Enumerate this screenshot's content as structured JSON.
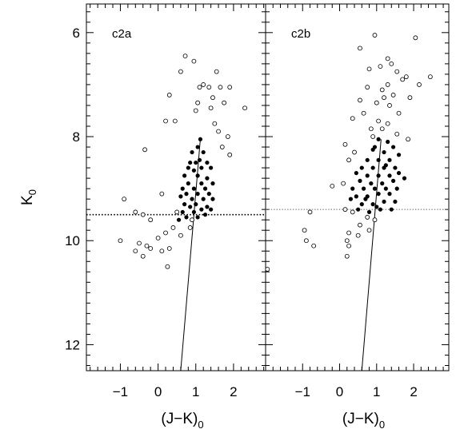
{
  "chart_data": [
    {
      "type": "scatter",
      "panel_label": "c2a",
      "xlabel": "(J−K)",
      "xlabel_sub": "0",
      "ylabel": "K",
      "ylabel_sub": "0",
      "xlim": [
        -1.9,
        2.85
      ],
      "ylim": [
        12.5,
        5.45
      ],
      "y_inverted": true,
      "x_ticks": [
        -1,
        0,
        1,
        2
      ],
      "y_ticks": [
        6,
        8,
        10,
        12
      ],
      "grid": false,
      "horizontal_line": {
        "y": 9.5,
        "style": "dotted"
      },
      "fit_line": [
        [
          0.6,
          12.5
        ],
        [
          1.12,
          8.05
        ]
      ],
      "series": [
        {
          "marker": "filled",
          "points": [
            [
              1.12,
              8.05
            ],
            [
              1.05,
              8.2
            ],
            [
              0.9,
              8.3
            ],
            [
              1.2,
              8.3
            ],
            [
              0.85,
              8.5
            ],
            [
              1.0,
              8.5
            ],
            [
              1.3,
              8.5
            ],
            [
              0.95,
              8.65
            ],
            [
              1.15,
              8.6
            ],
            [
              1.4,
              8.6
            ],
            [
              0.7,
              8.75
            ],
            [
              1.05,
              8.75
            ],
            [
              1.3,
              8.8
            ],
            [
              0.8,
              8.9
            ],
            [
              1.15,
              8.9
            ],
            [
              1.45,
              8.9
            ],
            [
              0.65,
              9.0
            ],
            [
              0.95,
              9.0
            ],
            [
              1.25,
              9.0
            ],
            [
              0.75,
              9.1
            ],
            [
              1.05,
              9.1
            ],
            [
              1.35,
              9.1
            ],
            [
              0.6,
              9.15
            ],
            [
              0.9,
              9.2
            ],
            [
              1.2,
              9.2
            ],
            [
              1.45,
              9.2
            ],
            [
              0.7,
              9.3
            ],
            [
              1.0,
              9.3
            ],
            [
              0.85,
              9.35
            ],
            [
              1.15,
              9.4
            ],
            [
              1.4,
              9.4
            ],
            [
              0.65,
              9.45
            ],
            [
              0.95,
              9.45
            ],
            [
              1.25,
              9.5
            ],
            [
              0.75,
              9.55
            ],
            [
              1.05,
              9.55
            ],
            [
              0.55,
              9.6
            ],
            [
              1.3,
              9.35
            ],
            [
              0.8,
              8.6
            ],
            [
              1.1,
              8.45
            ]
          ]
        },
        {
          "marker": "open",
          "points": [
            [
              0.72,
              6.45
            ],
            [
              0.95,
              6.55
            ],
            [
              1.55,
              6.75
            ],
            [
              0.6,
              6.75
            ],
            [
              1.2,
              7.0
            ],
            [
              1.1,
              7.05
            ],
            [
              1.35,
              7.05
            ],
            [
              1.65,
              7.05
            ],
            [
              1.9,
              7.05
            ],
            [
              0.3,
              7.2
            ],
            [
              1.45,
              7.25
            ],
            [
              1.05,
              7.35
            ],
            [
              1.75,
              7.35
            ],
            [
              1.4,
              7.45
            ],
            [
              2.3,
              7.45
            ],
            [
              1.0,
              7.5
            ],
            [
              0.45,
              7.7
            ],
            [
              0.2,
              7.7
            ],
            [
              1.6,
              7.9
            ],
            [
              1.5,
              7.75
            ],
            [
              1.85,
              8.0
            ],
            [
              1.7,
              8.2
            ],
            [
              -0.35,
              8.25
            ],
            [
              1.9,
              8.35
            ],
            [
              -0.9,
              9.2
            ],
            [
              -0.6,
              9.45
            ],
            [
              -0.4,
              9.5
            ],
            [
              -0.2,
              9.6
            ],
            [
              0.1,
              9.1
            ],
            [
              0.5,
              9.45
            ],
            [
              0.4,
              9.75
            ],
            [
              0.2,
              9.85
            ],
            [
              0.0,
              9.95
            ],
            [
              -0.3,
              10.1
            ],
            [
              -0.5,
              10.05
            ],
            [
              -0.6,
              10.2
            ],
            [
              -1.0,
              10.0
            ],
            [
              0.1,
              10.2
            ],
            [
              0.3,
              10.15
            ],
            [
              -0.4,
              10.3
            ],
            [
              0.25,
              10.5
            ],
            [
              0.85,
              9.75
            ],
            [
              0.6,
              9.9
            ],
            [
              0.9,
              9.6
            ],
            [
              -0.2,
              10.15
            ]
          ]
        }
      ]
    },
    {
      "type": "scatter",
      "panel_label": "c2b",
      "xlabel": "(J−K)",
      "xlabel_sub": "0",
      "xlim": [
        -2.0,
        2.95
      ],
      "ylim": [
        12.5,
        5.45
      ],
      "y_inverted": true,
      "x_ticks": [
        -1,
        0,
        1,
        2
      ],
      "y_ticks": [
        6,
        8,
        10,
        12
      ],
      "grid": false,
      "horizontal_line": {
        "y": 9.4,
        "style": "dotted-gray"
      },
      "fit_line": [
        [
          0.6,
          12.5
        ],
        [
          1.12,
          8.05
        ]
      ],
      "series": [
        {
          "marker": "filled",
          "points": [
            [
              1.05,
              8.05
            ],
            [
              1.3,
              8.1
            ],
            [
              0.9,
              8.25
            ],
            [
              1.2,
              8.3
            ],
            [
              1.45,
              8.2
            ],
            [
              0.75,
              8.45
            ],
            [
              1.05,
              8.45
            ],
            [
              1.35,
              8.45
            ],
            [
              1.6,
              8.35
            ],
            [
              0.6,
              8.6
            ],
            [
              0.9,
              8.6
            ],
            [
              1.2,
              8.6
            ],
            [
              1.5,
              8.6
            ],
            [
              0.45,
              8.7
            ],
            [
              0.75,
              8.75
            ],
            [
              1.05,
              8.75
            ],
            [
              1.35,
              8.75
            ],
            [
              1.6,
              8.7
            ],
            [
              1.75,
              8.8
            ],
            [
              0.55,
              8.85
            ],
            [
              0.85,
              8.9
            ],
            [
              1.15,
              8.9
            ],
            [
              1.45,
              8.85
            ],
            [
              0.35,
              9.0
            ],
            [
              0.65,
              9.0
            ],
            [
              0.95,
              9.0
            ],
            [
              1.25,
              9.0
            ],
            [
              1.55,
              9.0
            ],
            [
              0.45,
              9.15
            ],
            [
              0.75,
              9.15
            ],
            [
              1.05,
              9.1
            ],
            [
              1.35,
              9.1
            ],
            [
              0.3,
              9.2
            ],
            [
              0.6,
              9.3
            ],
            [
              0.9,
              9.3
            ],
            [
              1.2,
              9.25
            ],
            [
              1.5,
              9.25
            ],
            [
              0.5,
              9.4
            ],
            [
              0.8,
              9.45
            ],
            [
              1.1,
              9.4
            ],
            [
              1.4,
              9.4
            ],
            [
              0.95,
              8.2
            ],
            [
              1.25,
              8.55
            ],
            [
              0.7,
              9.2
            ],
            [
              1.0,
              9.35
            ]
          ]
        },
        {
          "marker": "open",
          "points": [
            [
              0.95,
              6.05
            ],
            [
              2.05,
              6.1
            ],
            [
              0.55,
              6.3
            ],
            [
              1.3,
              6.5
            ],
            [
              1.4,
              6.6
            ],
            [
              1.1,
              6.65
            ],
            [
              0.8,
              6.7
            ],
            [
              1.55,
              6.75
            ],
            [
              2.45,
              6.85
            ],
            [
              1.7,
              6.9
            ],
            [
              1.8,
              6.85
            ],
            [
              1.3,
              7.0
            ],
            [
              0.75,
              7.05
            ],
            [
              1.15,
              7.1
            ],
            [
              1.45,
              7.2
            ],
            [
              0.55,
              7.3
            ],
            [
              1.9,
              7.25
            ],
            [
              2.15,
              7.0
            ],
            [
              1.0,
              7.35
            ],
            [
              1.35,
              7.4
            ],
            [
              0.65,
              7.55
            ],
            [
              1.6,
              7.55
            ],
            [
              0.35,
              7.65
            ],
            [
              1.05,
              7.7
            ],
            [
              1.3,
              7.75
            ],
            [
              0.85,
              7.85
            ],
            [
              1.15,
              7.85
            ],
            [
              1.55,
              7.95
            ],
            [
              1.85,
              8.05
            ],
            [
              0.15,
              8.15
            ],
            [
              0.25,
              8.45
            ],
            [
              0.4,
              8.3
            ],
            [
              0.1,
              8.9
            ],
            [
              -0.2,
              8.95
            ],
            [
              0.15,
              9.4
            ],
            [
              0.35,
              9.45
            ],
            [
              0.75,
              9.55
            ],
            [
              0.95,
              9.6
            ],
            [
              0.55,
              9.7
            ],
            [
              0.8,
              9.8
            ],
            [
              0.25,
              9.85
            ],
            [
              0.5,
              9.9
            ],
            [
              0.2,
              10.0
            ],
            [
              0.25,
              10.1
            ],
            [
              0.2,
              10.3
            ],
            [
              -0.9,
              10.0
            ],
            [
              -0.7,
              10.1
            ],
            [
              -0.95,
              9.8
            ],
            [
              -0.8,
              9.45
            ],
            [
              -1.95,
              10.55
            ],
            [
              1.2,
              7.25
            ],
            [
              0.9,
              8.0
            ]
          ]
        }
      ]
    }
  ]
}
